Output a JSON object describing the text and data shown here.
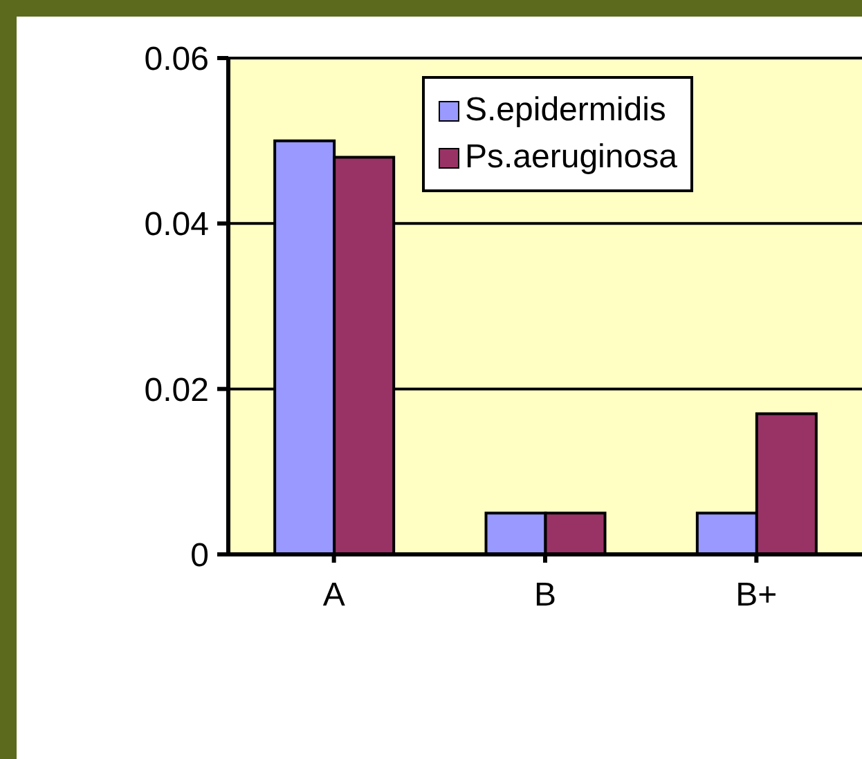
{
  "chart_data": {
    "type": "bar",
    "categories": [
      "A",
      "B",
      "B+"
    ],
    "series": [
      {
        "name": "S.epidermidis",
        "color": "#9999ff",
        "values": [
          0.05,
          0.005,
          0.005
        ]
      },
      {
        "name": "Ps.aeruginosa",
        "color": "#993366",
        "values": [
          0.048,
          0.005,
          0.017
        ]
      }
    ],
    "ylim": [
      0,
      0.06
    ],
    "yticks": [
      0,
      0.02,
      0.04,
      0.06
    ],
    "grid": "y",
    "legend": "top"
  }
}
